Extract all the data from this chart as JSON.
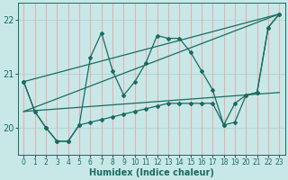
{
  "xlabel": "Humidex (Indice chaleur)",
  "bg_color": "#c8e8e8",
  "grid_color_h": "#b0d8d8",
  "grid_color_v": "#e8b0b0",
  "line_color": "#1a6b60",
  "xlim": [
    -0.5,
    23.5
  ],
  "ylim": [
    19.5,
    22.3
  ],
  "yticks": [
    20,
    21,
    22
  ],
  "xticks": [
    0,
    1,
    2,
    3,
    4,
    5,
    6,
    7,
    8,
    9,
    10,
    11,
    12,
    13,
    14,
    15,
    16,
    17,
    18,
    19,
    20,
    21,
    22,
    23
  ],
  "series1": {
    "points": [
      [
        0,
        20.85
      ],
      [
        1,
        20.3
      ],
      [
        2,
        20.0
      ],
      [
        3,
        19.75
      ],
      [
        4,
        19.75
      ],
      [
        5,
        20.05
      ],
      [
        6,
        21.3
      ],
      [
        7,
        21.75
      ],
      [
        8,
        21.05
      ],
      [
        9,
        20.6
      ],
      [
        10,
        20.85
      ],
      [
        11,
        21.2
      ],
      [
        12,
        21.7
      ],
      [
        13,
        21.65
      ],
      [
        14,
        21.65
      ],
      [
        15,
        21.4
      ],
      [
        16,
        21.05
      ],
      [
        17,
        20.7
      ],
      [
        18,
        20.05
      ],
      [
        19,
        20.45
      ],
      [
        20,
        20.6
      ],
      [
        21,
        20.65
      ],
      [
        22,
        21.85
      ],
      [
        23,
        22.1
      ]
    ]
  },
  "series2": {
    "points": [
      [
        0,
        20.85
      ],
      [
        1,
        20.3
      ],
      [
        2,
        20.0
      ],
      [
        3,
        19.75
      ],
      [
        4,
        19.75
      ],
      [
        5,
        20.05
      ],
      [
        6,
        20.1
      ],
      [
        7,
        20.15
      ],
      [
        8,
        20.2
      ],
      [
        9,
        20.25
      ],
      [
        10,
        20.3
      ],
      [
        11,
        20.35
      ],
      [
        12,
        20.4
      ],
      [
        13,
        20.45
      ],
      [
        14,
        20.45
      ],
      [
        15,
        20.45
      ],
      [
        16,
        20.45
      ],
      [
        17,
        20.45
      ],
      [
        18,
        20.05
      ],
      [
        19,
        20.1
      ],
      [
        20,
        20.6
      ],
      [
        21,
        20.65
      ],
      [
        22,
        21.85
      ],
      [
        23,
        22.1
      ]
    ]
  },
  "line3": {
    "points": [
      [
        0,
        20.85
      ],
      [
        23,
        22.1
      ]
    ]
  },
  "line4": {
    "points": [
      [
        0,
        20.3
      ],
      [
        23,
        22.1
      ]
    ]
  },
  "line5": {
    "points": [
      [
        0,
        20.3
      ],
      [
        23,
        20.65
      ]
    ]
  }
}
